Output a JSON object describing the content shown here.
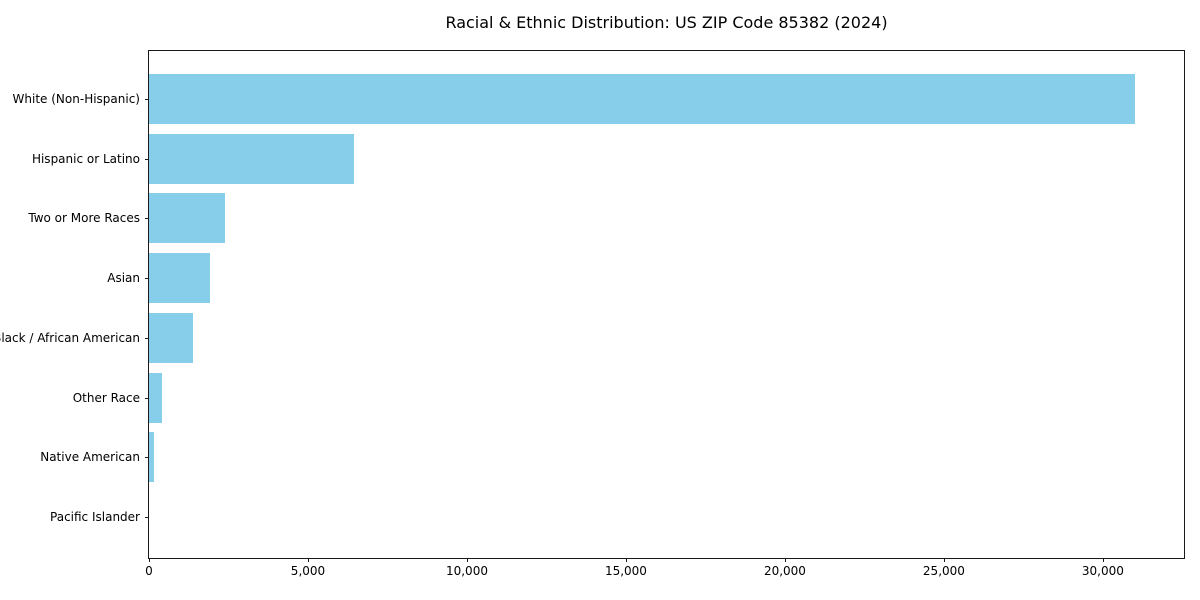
{
  "chart_data": {
    "type": "bar",
    "orientation": "horizontal",
    "title": "Racial & Ethnic Distribution: US ZIP Code 85382 (2024)",
    "categories": [
      "White (Non-Hispanic)",
      "Hispanic or Latino",
      "Two or More Races",
      "Asian",
      "Black / African American",
      "Other Race",
      "Native American",
      "Pacific Islander"
    ],
    "values": [
      31000,
      6450,
      2400,
      1930,
      1370,
      420,
      150,
      0
    ],
    "xlabel": "",
    "ylabel": "",
    "xlim": [
      0,
      32550
    ],
    "x_ticks": [
      0,
      5000,
      10000,
      15000,
      20000,
      25000,
      30000
    ],
    "x_tick_labels": [
      "0",
      "5,000",
      "10,000",
      "15,000",
      "20,000",
      "25,000",
      "30,000"
    ],
    "bar_color": "#87CEEB",
    "background_color": "#FFFFFF",
    "frame_color": "#1a1a1a",
    "grid": false,
    "legend": null
  }
}
